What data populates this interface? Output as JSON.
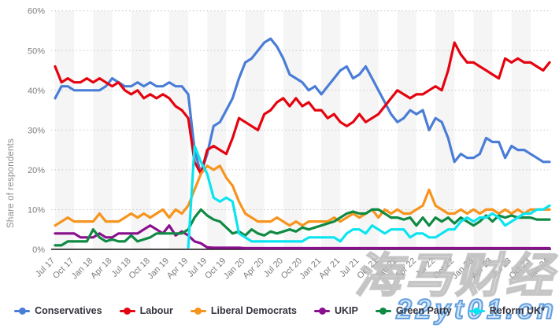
{
  "chart_data": {
    "type": "line",
    "title": "",
    "ylabel": "Share of respondents",
    "xlabel": "",
    "ylim": [
      0,
      60
    ],
    "y_ticks": [
      "0%",
      "10%",
      "20%",
      "30%",
      "40%",
      "50%",
      "60%"
    ],
    "grid": "horizontal dotted gridlines, alternating quarterly background bands",
    "legend_position": "bottom",
    "x": [
      "Jul 17",
      "Aug 17",
      "Sep 17",
      "Oct 17",
      "Nov 17",
      "Dec 17",
      "Jan 18",
      "Feb 18",
      "Mar 18",
      "Apr 18",
      "May 18",
      "Jun 18",
      "Jul 18",
      "Aug 18",
      "Sep 18",
      "Oct 18",
      "Nov 18",
      "Dec 18",
      "Jan 19",
      "Feb 19",
      "Mar 19",
      "Apr 19",
      "May 19",
      "Jun 19",
      "Jul 19",
      "Aug 19",
      "Sep 19",
      "Oct 19",
      "Nov 19",
      "Dec 19",
      "Jan 20",
      "Feb 20",
      "Mar 20",
      "Apr 20",
      "May 20",
      "Jun 20",
      "Jul 20",
      "Aug 20",
      "Sep 20",
      "Oct 20",
      "Nov 20",
      "Dec 20",
      "Jan 21",
      "Feb 21",
      "Mar 21",
      "Apr 21",
      "May 21",
      "Jun 21",
      "Jul 21",
      "Aug 21",
      "Sep 21",
      "Oct 21",
      "Nov 21",
      "Dec 21",
      "Jan 22",
      "Feb 22",
      "Mar 22",
      "Apr 22",
      "May 22",
      "Jun 22",
      "Jul 22",
      "Aug 22",
      "Sep 22",
      "Oct 22",
      "Nov 22",
      "Dec 22",
      "Jan 23",
      "Feb 23",
      "Mar 23",
      "Apr 23",
      "May 23",
      "Jun 23",
      "Jul 23",
      "Aug 23",
      "Sep 23",
      "Oct 23",
      "Nov 23",
      "Dec 23",
      "Jan 24"
    ],
    "x_tick_every_n_months": 3,
    "series": [
      {
        "name": "Conservatives",
        "color": "#4a7dd6",
        "values": [
          38,
          41,
          41,
          40,
          40,
          40,
          40,
          40,
          41,
          43,
          42,
          41,
          41,
          42,
          41,
          42,
          41,
          41,
          42,
          41,
          41,
          39,
          25,
          19,
          24,
          31,
          32,
          35,
          38,
          43,
          47,
          48,
          50,
          52,
          53,
          51,
          48,
          44,
          43,
          42,
          40,
          41,
          39,
          41,
          43,
          45,
          46,
          43,
          44,
          46,
          43,
          40,
          37,
          34,
          32,
          33,
          35,
          34,
          35,
          30,
          33,
          32,
          28,
          22,
          24,
          23,
          23,
          24,
          28,
          27,
          27,
          23,
          26,
          25,
          25,
          24,
          23,
          22,
          22
        ]
      },
      {
        "name": "Labour",
        "color": "#e4030f",
        "values": [
          46,
          42,
          43,
          42,
          42,
          43,
          42,
          43,
          42,
          41,
          42,
          40,
          39,
          40,
          38,
          39,
          38,
          39,
          38,
          36,
          35,
          33,
          22,
          19,
          25,
          26,
          25,
          24,
          28,
          33,
          32,
          31,
          30,
          34,
          35,
          37,
          38,
          36,
          38,
          36,
          37,
          35,
          35,
          33,
          34,
          32,
          31,
          32,
          34,
          32,
          33,
          34,
          36,
          38,
          40,
          39,
          38,
          39,
          39,
          40,
          41,
          40,
          45,
          52,
          49,
          47,
          47,
          46,
          45,
          44,
          43,
          48,
          47,
          48,
          47,
          47,
          46,
          45,
          47
        ]
      },
      {
        "name": "Liberal Democrats",
        "color": "#f7941d",
        "values": [
          6,
          7,
          8,
          7,
          7,
          7,
          7,
          9,
          7,
          7,
          7,
          8,
          9,
          8,
          9,
          8,
          9,
          10,
          8,
          10,
          9,
          11,
          15,
          19,
          21,
          20,
          21,
          18,
          16,
          12,
          9,
          8,
          7,
          7,
          7,
          8,
          7,
          6,
          7,
          6,
          7,
          7,
          7,
          7,
          8,
          7,
          8,
          9,
          8,
          9,
          10,
          8,
          10,
          9,
          10,
          9,
          9,
          10,
          11,
          15,
          11,
          10,
          9,
          9,
          10,
          9,
          10,
          9,
          10,
          10,
          9,
          10,
          9,
          10,
          9,
          10,
          10,
          10,
          10
        ]
      },
      {
        "name": "UKIP",
        "color": "#8a0f8f",
        "values": [
          4,
          4,
          4,
          4,
          3,
          3,
          3,
          4,
          3,
          3,
          4,
          4,
          4,
          4,
          5,
          6,
          5,
          4,
          6,
          3.5,
          4.5,
          3.5,
          2,
          1.5,
          0.5,
          0.4,
          0.4,
          0.4,
          0.4,
          0.4,
          0.3,
          0.3,
          0.3,
          0.3,
          0.3,
          0.3,
          0.3,
          0.3,
          0.3,
          0.3,
          0.3,
          0.3,
          0.3,
          0.3,
          0.3,
          0.3,
          0.3,
          0.3,
          0.3,
          0.3,
          0.3,
          0.3,
          0.3,
          0.3,
          0.3,
          0.3,
          0.3,
          0.3,
          0.3,
          0.3,
          0.3,
          0.3,
          0.3,
          0.3,
          0.3,
          0.3,
          0.3,
          0.3,
          0.3,
          0.3,
          0.3,
          0.3,
          0.3,
          0.3,
          0.3,
          0.3,
          0.3,
          0.3,
          0.3
        ]
      },
      {
        "name": "Green Party",
        "color": "#0f8a43",
        "values": [
          1,
          1,
          2,
          2,
          2,
          2,
          5,
          3,
          2,
          2.5,
          2,
          2,
          3.5,
          2,
          2.5,
          3,
          4,
          4,
          4,
          4,
          4,
          5,
          8,
          10,
          8.5,
          7.5,
          7,
          5.5,
          4,
          4.5,
          3.5,
          5,
          4,
          3.5,
          4.5,
          4,
          4.5,
          5,
          4.5,
          5.5,
          5,
          5.5,
          6,
          6.5,
          7,
          8,
          9,
          9.5,
          9,
          9,
          10,
          10,
          9,
          8,
          8,
          7.5,
          8,
          6,
          8,
          6,
          8,
          7,
          8,
          6.5,
          8,
          7,
          6,
          7,
          8.5,
          7,
          8.5,
          8,
          8.5,
          8,
          8,
          8,
          7.5,
          7.5,
          7.5
        ]
      },
      {
        "name": "Reform UK*",
        "color": "#0be4f0",
        "values": [
          null,
          null,
          null,
          null,
          null,
          null,
          null,
          null,
          null,
          null,
          null,
          null,
          null,
          null,
          null,
          null,
          null,
          null,
          null,
          null,
          null,
          0.5,
          26,
          22,
          19,
          13,
          12,
          13,
          12,
          4,
          3,
          2,
          2,
          2,
          2,
          2,
          2,
          2,
          2,
          2,
          3,
          3,
          3,
          3,
          3,
          2,
          4,
          5,
          5,
          4,
          6,
          5,
          4,
          5,
          5,
          5,
          3,
          4,
          4,
          3,
          3,
          4,
          5,
          5,
          7,
          8,
          7,
          8,
          8,
          9,
          8,
          6,
          7,
          8,
          9,
          9,
          10,
          10,
          11
        ]
      }
    ]
  },
  "axis": {
    "y_title": "Share of respondents"
  },
  "watermarks": {
    "primary": "海马财经",
    "secondary": "22yt01.cn"
  }
}
